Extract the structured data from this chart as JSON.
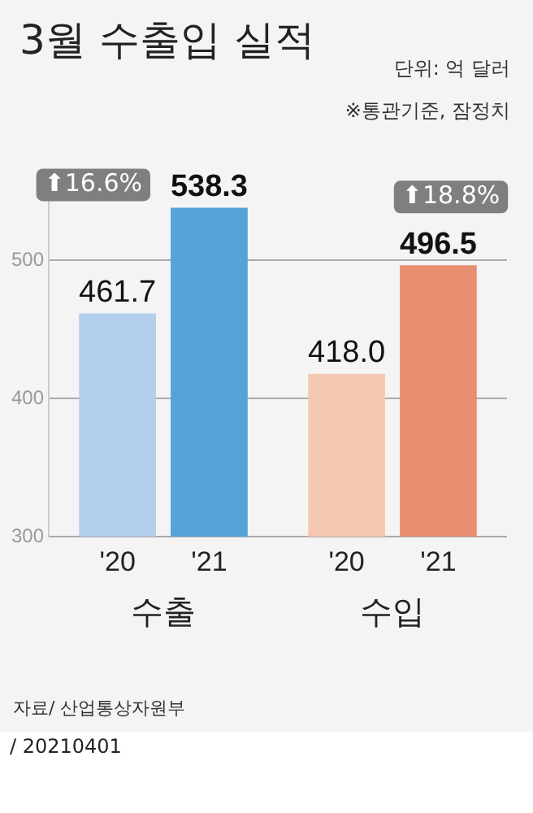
{
  "chart_data": {
    "type": "bar",
    "title": "3월 수출입 실적",
    "subtitle": "단위: 억 달러",
    "categories": [
      "수출",
      "수입"
    ],
    "series": [
      {
        "name": "'20",
        "colors": [
          "#b4cfee",
          "#f5c8b4"
        ],
        "values": [
          461.7,
          418.0
        ],
        "value_labels": [
          "461.7",
          "418.0"
        ]
      },
      {
        "name": "'21",
        "colors": [
          "#55a3d8",
          "#e88f72"
        ],
        "values": [
          538.3,
          496.5
        ],
        "value_labels": [
          "538.3",
          "496.5"
        ]
      }
    ],
    "ylim": [
      300,
      545
    ],
    "yticks": [
      300,
      400,
      500
    ],
    "grid": "y",
    "legend": false,
    "annotations": [
      "※통관기준, 잠정치",
      {
        "text": "⬆16.6%",
        "x": "수출",
        "y": 538.3
      },
      {
        "text": "⬆18.8%",
        "x": "수입",
        "y": 496.5
      },
      "자료/ 산업통상자원부",
      "/ 20210401"
    ]
  }
}
